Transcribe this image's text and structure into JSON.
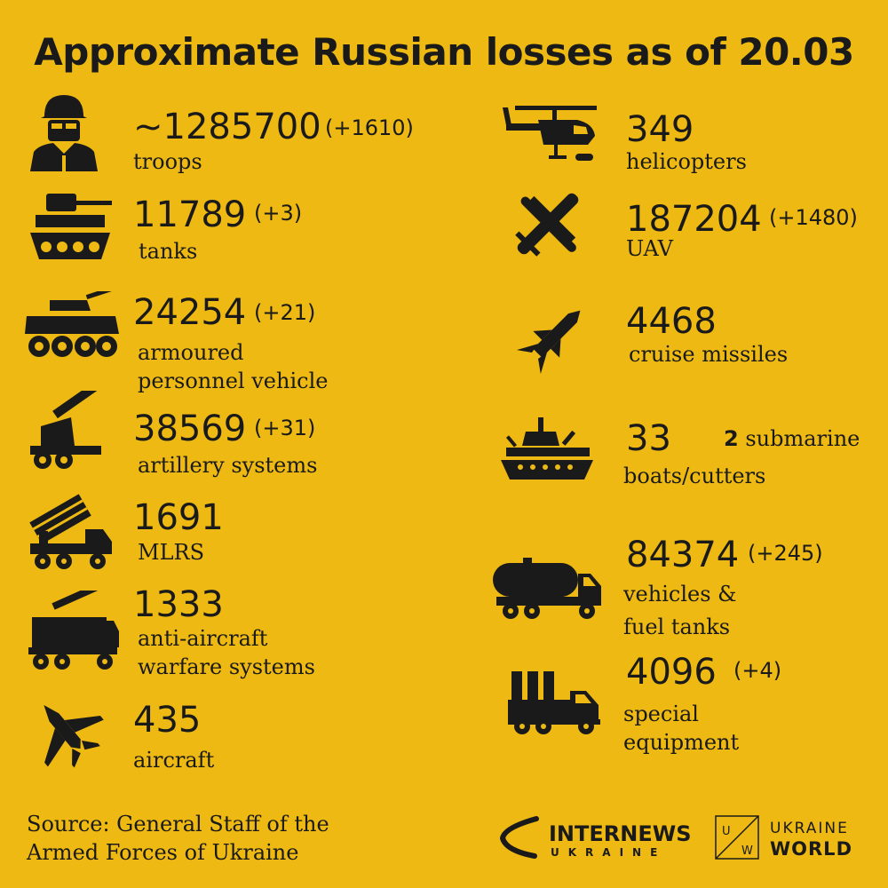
{
  "title": "Approximate Russian losses as of 20.03",
  "left": [
    {
      "id": "troops",
      "value": "~1285700",
      "delta": "(+1610)",
      "label1": "troops",
      "label2": ""
    },
    {
      "id": "tanks",
      "value": "11789",
      "delta": "(+3)",
      "label1": "tanks",
      "label2": ""
    },
    {
      "id": "apv",
      "value": "24254",
      "delta": "(+21)",
      "label1": "armoured",
      "label2": "personnel vehicle"
    },
    {
      "id": "artillery",
      "value": "38569",
      "delta": "(+31)",
      "label1": "artillery systems",
      "label2": ""
    },
    {
      "id": "mlrs",
      "value": "1691",
      "delta": "",
      "label1": "MLRS",
      "label2": ""
    },
    {
      "id": "aa",
      "value": "1333",
      "delta": "",
      "label1": "anti-aircraft",
      "label2": "warfare systems"
    },
    {
      "id": "aircraft",
      "value": "435",
      "delta": "",
      "label1": "aircraft",
      "label2": ""
    }
  ],
  "right": [
    {
      "id": "helicopters",
      "value": "349",
      "delta": "",
      "label1": "helicopters",
      "label2": ""
    },
    {
      "id": "uav",
      "value": "187204",
      "delta": "(+1480)",
      "label1": "UAV",
      "label2": ""
    },
    {
      "id": "missiles",
      "value": "4468",
      "delta": "",
      "label1": "cruise missiles",
      "label2": ""
    },
    {
      "id": "boats",
      "value": "33",
      "delta": "",
      "label1": "boats/cutters",
      "label2": ""
    },
    {
      "id": "vehicles",
      "value": "84374",
      "delta": "(+245)",
      "label1": "vehicles &",
      "label2": "fuel tanks"
    },
    {
      "id": "special",
      "value": "4096",
      "delta": "(+4)",
      "label1": "special",
      "label2": "equipment"
    }
  ],
  "boats_extra": {
    "count": "2",
    "label": "submarine"
  },
  "source": {
    "line1": "Source: General Staff of the",
    "line2": "Armed Forces of Ukraine"
  },
  "logos": {
    "internews_main": "INTERNEWS",
    "internews_sub": "UKRAINE",
    "uw_top": "UKRAINE",
    "uw_bottom": "WORLD",
    "uw_mark_u": "U",
    "uw_mark_w": "W"
  }
}
